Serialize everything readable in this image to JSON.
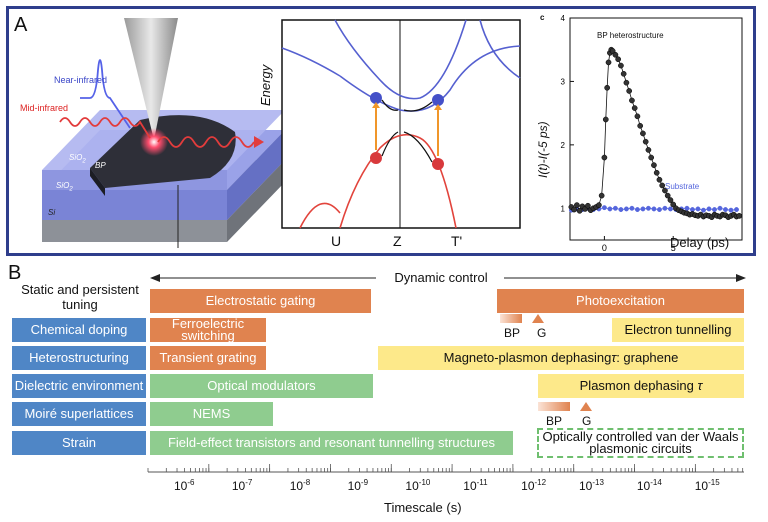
{
  "panel_a": {
    "tag": "A",
    "left": {
      "near_ir": "Near-infrared",
      "mid_ir": "Mid-infrared",
      "sio2_top": "SiO",
      "sio2_top_sub": "2",
      "bp": "BP",
      "sio2_bot": "SiO",
      "sio2_bot_sub": "2",
      "si": "Si"
    },
    "band": {
      "ylabel": "Energy",
      "x_ticks": [
        "U",
        "Z",
        "T'"
      ]
    },
    "chart_data": {
      "type": "scatter",
      "panel_letter": "c",
      "title": "",
      "xlabel": "Delay (ps)",
      "ylabel": "I(t)-I(-5 ps)",
      "xlim": [
        -2.5,
        10
      ],
      "ylim": [
        0.5,
        4
      ],
      "x_ticks": [
        "0",
        "5"
      ],
      "y_ticks": [
        "1",
        "2",
        "3",
        "4"
      ],
      "series": [
        {
          "name": "BP heterostructure",
          "color": "#111111",
          "x": [
            -2.4,
            -2.2,
            -2.0,
            -1.8,
            -1.6,
            -1.4,
            -1.2,
            -1.0,
            -0.8,
            -0.6,
            -0.4,
            -0.2,
            0.0,
            0.1,
            0.2,
            0.3,
            0.4,
            0.5,
            0.6,
            0.8,
            1.0,
            1.2,
            1.4,
            1.6,
            1.8,
            2.0,
            2.2,
            2.4,
            2.6,
            2.8,
            3.0,
            3.2,
            3.4,
            3.6,
            3.8,
            4.0,
            4.2,
            4.4,
            4.6,
            4.8,
            5.0,
            5.2,
            5.4,
            5.6,
            5.8,
            6.0,
            6.2,
            6.4,
            6.6,
            6.8,
            7.0,
            7.2,
            7.4,
            7.6,
            7.8,
            8.0,
            8.2,
            8.4,
            8.6,
            8.8,
            9.0,
            9.2,
            9.4,
            9.6,
            9.8
          ],
          "y": [
            1.02,
            0.98,
            1.05,
            0.96,
            1.03,
            0.99,
            1.04,
            0.97,
            1.0,
            1.02,
            1.05,
            1.2,
            1.8,
            2.4,
            2.9,
            3.3,
            3.45,
            3.5,
            3.48,
            3.42,
            3.35,
            3.25,
            3.12,
            2.98,
            2.85,
            2.7,
            2.58,
            2.45,
            2.3,
            2.18,
            2.05,
            1.92,
            1.8,
            1.68,
            1.56,
            1.45,
            1.36,
            1.28,
            1.2,
            1.13,
            1.06,
            1.0,
            0.97,
            0.95,
            0.93,
            0.92,
            0.9,
            0.91,
            0.89,
            0.88,
            0.9,
            0.87,
            0.89,
            0.88,
            0.86,
            0.9,
            0.88,
            0.87,
            0.9,
            0.89,
            0.86,
            0.88,
            0.9,
            0.87,
            0.88
          ]
        },
        {
          "name": "Substrate",
          "color": "#5566dd",
          "x": [
            -2.4,
            -2.0,
            -1.6,
            -1.2,
            -0.8,
            -0.4,
            0.0,
            0.4,
            0.8,
            1.2,
            1.6,
            2.0,
            2.4,
            2.8,
            3.2,
            3.6,
            4.0,
            4.4,
            4.8,
            5.2,
            5.6,
            6.0,
            6.4,
            6.8,
            7.2,
            7.6,
            8.0,
            8.4,
            8.8,
            9.2,
            9.6
          ],
          "y": [
            0.97,
            0.99,
            0.98,
            1.0,
            0.98,
            0.99,
            1.01,
            0.99,
            1.0,
            0.98,
            0.99,
            1.0,
            0.98,
            0.99,
            1.0,
            0.99,
            0.98,
            1.0,
            0.99,
            0.98,
            0.99,
            1.0,
            0.98,
            0.99,
            0.97,
            0.99,
            0.98,
            1.0,
            0.98,
            0.97,
            0.98
          ]
        }
      ]
    }
  },
  "panel_b": {
    "tag": "B",
    "static_label": "Static and persistent tuning",
    "dynamic_label": "Dynamic control",
    "row_labels": [
      "Chemical doping",
      "Heterostructuring",
      "Dielectric environment",
      "Moiré superlattices",
      "Strain"
    ],
    "bars": {
      "electrostatic": "Electrostatic gating",
      "photoexcitation": "Photoexcitation",
      "ferroelectric": "Ferroelectric switching",
      "electron_tunnelling": "Electron tunnelling",
      "transient_grating": "Transient grating",
      "magneto_prefix": "Magneto-plasmon dephasing ",
      "magneto_tau": "τ",
      "magneto_suffix": " : graphene",
      "optical_modulators": "Optical modulators",
      "plasmon_prefix": "Plasmon dephasing ",
      "plasmon_tau": "τ",
      "nems": "NEMS",
      "fet": "Field-effect transistors and resonant tunnelling structures",
      "optically_controlled": "Optically controlled van der Waals plasmonic circuits"
    },
    "markers": {
      "bp1": "BP",
      "g1": "G",
      "bp2": "BP",
      "g2": "G"
    },
    "axis": {
      "title": "Timescale (s)",
      "ticks": [
        {
          "base": "10",
          "exp": "-6"
        },
        {
          "base": "10",
          "exp": "-7"
        },
        {
          "base": "10",
          "exp": "-8"
        },
        {
          "base": "10",
          "exp": "-9"
        },
        {
          "base": "10",
          "exp": "-10"
        },
        {
          "base": "10",
          "exp": "-11"
        },
        {
          "base": "10",
          "exp": "-12"
        },
        {
          "base": "10",
          "exp": "-13"
        },
        {
          "base": "10",
          "exp": "-14"
        },
        {
          "base": "10",
          "exp": "-15"
        }
      ]
    },
    "colors": {
      "label_blue": "#4f86c6",
      "orange": "#e0834f",
      "green": "#8fcc8f",
      "yellow": "#fde98a"
    }
  }
}
